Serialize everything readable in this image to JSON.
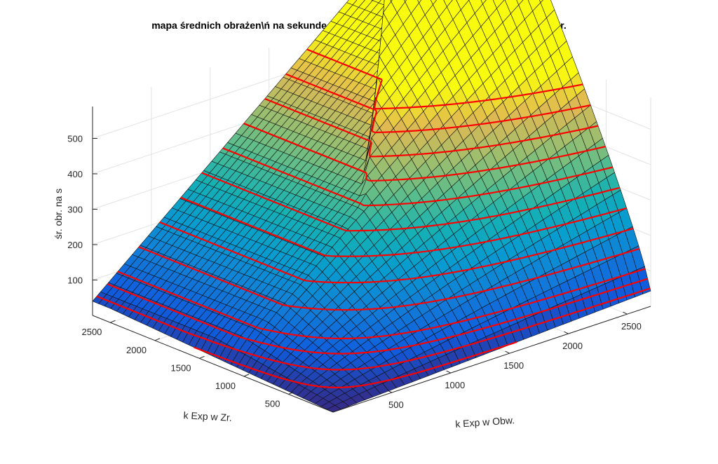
{
  "chart_data": {
    "type": "surface3d",
    "title": "mapa średnich obrażen\\ń na sekundę od magii pieczęci ziemi zależnie od PD w Obw. i Zr.",
    "xlabel": "k Exp w Obw.",
    "ylabel": "k Exp w Zr.",
    "zlabel": "śr. obr. na s",
    "x_range": [
      0,
      2700
    ],
    "y_range": [
      0,
      2700
    ],
    "z_range": [
      0,
      590
    ],
    "x_ticks": [
      500,
      1000,
      1500,
      2000,
      2500
    ],
    "y_ticks": [
      500,
      1000,
      1500,
      2000,
      2500
    ],
    "z_ticks": [
      100,
      200,
      300,
      400,
      500
    ],
    "x_tick_labels": [
      "500",
      "1000",
      "1500",
      "2000",
      "2500"
    ],
    "y_tick_labels": [
      "500",
      "1000",
      "1500",
      "2000",
      "2500"
    ],
    "z_tick_labels": [
      "100",
      "200",
      "300",
      "400",
      "500"
    ],
    "grid": true,
    "colormap": "parula",
    "contour_levels": [
      25,
      50,
      75,
      100,
      150,
      200,
      250,
      300,
      350,
      400,
      450,
      500,
      550
    ],
    "contour_color": "#ff0000",
    "corner_values": {
      "z_at_0_0": 0,
      "z_at_xmax_0": 40,
      "z_at_0_ymax": 40,
      "z_at_xmax_ymax": 585
    },
    "surface_model": "z = 0.7*(x*y/1000)^0.86 + 0.016*(x+y), capped at 40 + 0.28*x for x < y"
  }
}
